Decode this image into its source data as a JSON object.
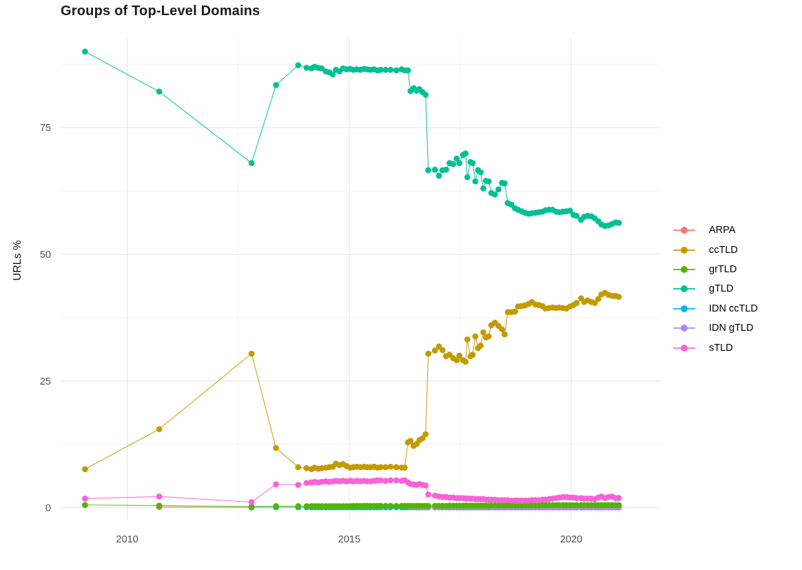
{
  "chart_data": {
    "type": "line",
    "marker": "circle",
    "title": "Groups of Top-Level Domains",
    "xlabel": "",
    "ylabel": "URLs %",
    "grid": "on",
    "legend_position": "right",
    "x_range": [
      2008.5,
      2022.0
    ],
    "y_range": [
      -2.5,
      92.7
    ],
    "x_ticks": {
      "values": [
        2010,
        2015,
        2020
      ],
      "labels": [
        "2010",
        "2015",
        "2020"
      ]
    },
    "y_ticks": {
      "values": [
        0,
        25,
        50,
        75
      ],
      "labels": [
        "0",
        "25",
        "50",
        "75"
      ]
    },
    "x_minor": [
      2012.5,
      2017.5
    ],
    "y_minor": [
      12.5,
      37.5,
      62.5,
      87.5
    ],
    "series": [
      {
        "name": "ARPA",
        "color": "#F8766D",
        "x": [
          2010.72,
          2012.8
        ],
        "y": [
          0.12,
          0.05
        ]
      },
      {
        "name": "ccTLD",
        "color": "#C49A00",
        "x": [
          2009.05,
          2010.72,
          2012.8,
          2013.35,
          2013.85,
          2014.04,
          2014.15,
          2014.22,
          2014.3,
          2014.38,
          2014.47,
          2014.55,
          2014.63,
          2014.7,
          2014.78,
          2014.86,
          2014.94,
          2015.02,
          2015.09,
          2015.17,
          2015.25,
          2015.33,
          2015.4,
          2015.48,
          2015.56,
          2015.64,
          2015.71,
          2015.82,
          2015.93,
          2016.06,
          2016.18,
          2016.25,
          2016.32,
          2016.38,
          2016.45,
          2016.52,
          2016.58,
          2016.65,
          2016.72,
          2016.78,
          2016.93,
          2017.02,
          2017.1,
          2017.18,
          2017.26,
          2017.34,
          2017.42,
          2017.48,
          2017.56,
          2017.62,
          2017.66,
          2017.73,
          2017.78,
          2017.84,
          2017.9,
          2017.96,
          2018.02,
          2018.08,
          2018.14,
          2018.2,
          2018.28,
          2018.36,
          2018.44,
          2018.5,
          2018.57,
          2018.65,
          2018.73,
          2018.8,
          2018.88,
          2018.96,
          2019.04,
          2019.11,
          2019.19,
          2019.27,
          2019.35,
          2019.42,
          2019.5,
          2019.58,
          2019.66,
          2019.73,
          2019.81,
          2019.89,
          2019.97,
          2020.05,
          2020.12,
          2020.22,
          2020.29,
          2020.37,
          2020.45,
          2020.53,
          2020.61,
          2020.68,
          2020.76,
          2020.84,
          2020.92,
          2021.0,
          2021.07
        ],
        "y": [
          7.6,
          15.5,
          30.4,
          11.8,
          8.0,
          7.8,
          7.6,
          7.9,
          7.7,
          7.8,
          7.9,
          8.0,
          8.1,
          8.7,
          8.4,
          8.6,
          8.2,
          7.9,
          8.0,
          8.1,
          8.0,
          8.1,
          8.0,
          8.0,
          8.1,
          7.9,
          8.0,
          8.0,
          8.1,
          8.0,
          7.9,
          7.9,
          12.9,
          13.2,
          12.2,
          12.6,
          13.3,
          13.7,
          14.5,
          30.4,
          31.0,
          31.8,
          31.1,
          29.9,
          30.2,
          29.5,
          29.1,
          30.0,
          29.1,
          28.8,
          33.2,
          29.9,
          30.2,
          33.8,
          31.5,
          32.0,
          34.6,
          33.6,
          33.8,
          36.0,
          36.5,
          35.9,
          35.2,
          34.2,
          38.6,
          38.6,
          38.7,
          39.7,
          39.8,
          39.9,
          40.2,
          40.6,
          40.1,
          40.0,
          39.8,
          39.3,
          39.4,
          39.5,
          39.4,
          39.5,
          39.4,
          39.3,
          39.7,
          40.0,
          40.4,
          41.3,
          40.6,
          40.9,
          40.6,
          40.4,
          41.2,
          42.1,
          42.4,
          42.0,
          41.8,
          41.8,
          41.6
        ]
      },
      {
        "name": "grTLD",
        "color": "#53B400",
        "x": [
          2009.05,
          2010.72,
          2012.8,
          2013.35,
          2013.85,
          2014.04,
          2014.15,
          2014.22,
          2014.3,
          2014.38,
          2014.47,
          2014.55,
          2014.63,
          2014.7,
          2014.78,
          2014.86,
          2014.94,
          2015.02,
          2015.09,
          2015.17,
          2015.25,
          2015.33,
          2015.4,
          2015.48,
          2015.56,
          2015.64,
          2015.71,
          2015.82,
          2015.93,
          2016.06,
          2016.18,
          2016.25,
          2016.32,
          2016.38,
          2016.45,
          2016.52,
          2016.58,
          2016.65,
          2016.72,
          2016.78,
          2016.93,
          2017.02,
          2017.1,
          2017.18,
          2017.26,
          2017.34,
          2017.42,
          2017.48,
          2017.56,
          2017.62,
          2017.66,
          2017.73,
          2017.78,
          2017.84,
          2017.9,
          2017.96,
          2018.02,
          2018.08,
          2018.14,
          2018.2,
          2018.28,
          2018.36,
          2018.44,
          2018.5,
          2018.57,
          2018.65,
          2018.73,
          2018.8,
          2018.88,
          2018.96,
          2019.04,
          2019.11,
          2019.19,
          2019.27,
          2019.35,
          2019.42,
          2019.5,
          2019.58,
          2019.66,
          2019.73,
          2019.81,
          2019.89,
          2019.97,
          2020.05,
          2020.12,
          2020.22,
          2020.29,
          2020.37,
          2020.45,
          2020.53,
          2020.61,
          2020.68,
          2020.76,
          2020.84,
          2020.92,
          2021.0,
          2021.07
        ],
        "y": [
          0.55,
          0.4,
          0.25,
          0.3,
          0.3,
          0.3,
          0.3,
          0.3,
          0.3,
          0.3,
          0.3,
          0.3,
          0.3,
          0.3,
          0.3,
          0.3,
          0.3,
          0.3,
          0.35,
          0.35,
          0.35,
          0.35,
          0.35,
          0.35,
          0.35,
          0.35,
          0.35,
          0.35,
          0.35,
          0.35,
          0.35,
          0.35,
          0.35,
          0.35,
          0.35,
          0.35,
          0.35,
          0.35,
          0.35,
          0.35,
          0.35,
          0.35,
          0.35,
          0.35,
          0.4,
          0.4,
          0.4,
          0.4,
          0.4,
          0.4,
          0.4,
          0.4,
          0.4,
          0.4,
          0.4,
          0.4,
          0.4,
          0.4,
          0.4,
          0.45,
          0.45,
          0.45,
          0.45,
          0.45,
          0.45,
          0.45,
          0.45,
          0.45,
          0.45,
          0.45,
          0.45,
          0.45,
          0.45,
          0.45,
          0.5,
          0.5,
          0.5,
          0.5,
          0.5,
          0.5,
          0.5,
          0.5,
          0.5,
          0.5,
          0.5,
          0.5,
          0.5,
          0.5,
          0.5,
          0.5,
          0.5,
          0.5,
          0.5,
          0.5,
          0.5,
          0.5,
          0.5
        ]
      },
      {
        "name": "gTLD",
        "color": "#00C094",
        "x": [
          2009.05,
          2010.72,
          2012.8,
          2013.35,
          2013.85,
          2014.04,
          2014.15,
          2014.22,
          2014.3,
          2014.38,
          2014.47,
          2014.55,
          2014.63,
          2014.7,
          2014.78,
          2014.86,
          2014.94,
          2015.02,
          2015.09,
          2015.17,
          2015.25,
          2015.33,
          2015.4,
          2015.48,
          2015.56,
          2015.64,
          2015.71,
          2015.82,
          2015.93,
          2016.06,
          2016.18,
          2016.25,
          2016.32,
          2016.38,
          2016.45,
          2016.52,
          2016.58,
          2016.65,
          2016.72,
          2016.78,
          2016.93,
          2017.02,
          2017.1,
          2017.18,
          2017.26,
          2017.34,
          2017.42,
          2017.48,
          2017.56,
          2017.62,
          2017.66,
          2017.73,
          2017.78,
          2017.84,
          2017.9,
          2017.96,
          2018.02,
          2018.08,
          2018.14,
          2018.2,
          2018.28,
          2018.36,
          2018.44,
          2018.5,
          2018.57,
          2018.65,
          2018.73,
          2018.8,
          2018.88,
          2018.96,
          2019.04,
          2019.11,
          2019.19,
          2019.27,
          2019.35,
          2019.42,
          2019.5,
          2019.58,
          2019.66,
          2019.73,
          2019.81,
          2019.89,
          2019.97,
          2020.05,
          2020.12,
          2020.22,
          2020.29,
          2020.37,
          2020.45,
          2020.53,
          2020.61,
          2020.68,
          2020.76,
          2020.84,
          2020.92,
          2021.0,
          2021.07
        ],
        "y": [
          90.0,
          82.1,
          68.0,
          83.4,
          87.3,
          86.8,
          86.7,
          87.0,
          86.8,
          86.7,
          86.1,
          85.9,
          85.5,
          86.4,
          86.1,
          86.7,
          86.5,
          86.6,
          86.4,
          86.5,
          86.4,
          86.6,
          86.5,
          86.4,
          86.5,
          86.3,
          86.4,
          86.4,
          86.4,
          86.3,
          86.5,
          86.3,
          86.3,
          82.2,
          82.8,
          82.3,
          82.6,
          82.0,
          81.5,
          66.6,
          66.7,
          65.5,
          66.6,
          66.7,
          68.0,
          67.8,
          68.9,
          68.0,
          69.6,
          69.9,
          65.2,
          68.2,
          68.0,
          64.4,
          66.6,
          66.2,
          63.0,
          64.5,
          64.4,
          62.1,
          61.8,
          62.8,
          64.1,
          64.0,
          60.1,
          59.8,
          59.1,
          58.8,
          58.5,
          58.2,
          58.0,
          58.1,
          58.2,
          58.3,
          58.4,
          58.7,
          58.8,
          58.8,
          58.4,
          58.3,
          58.4,
          58.5,
          58.6,
          57.8,
          57.6,
          56.8,
          57.4,
          57.6,
          57.5,
          57.1,
          56.5,
          55.9,
          55.6,
          55.7,
          56.0,
          56.3,
          56.2
        ]
      },
      {
        "name": "IDN ccTLD",
        "color": "#00B6EB",
        "x": [
          2012.8,
          2013.35,
          2013.85,
          2014.04,
          2014.15,
          2014.22,
          2014.3,
          2014.38,
          2014.47,
          2014.55,
          2014.63,
          2014.7,
          2014.78,
          2014.86,
          2014.94,
          2015.02,
          2015.09,
          2015.17,
          2015.25,
          2015.33,
          2015.4,
          2015.48,
          2015.56,
          2015.64,
          2015.71,
          2015.82,
          2015.93,
          2016.06,
          2016.18,
          2016.25,
          2016.32,
          2016.38,
          2016.45,
          2016.52,
          2016.58,
          2016.65,
          2016.72,
          2016.78,
          2016.93,
          2017.02,
          2017.1,
          2017.18,
          2017.26,
          2017.34,
          2017.42,
          2017.48,
          2017.56,
          2017.62,
          2017.66,
          2017.73,
          2017.78,
          2017.84,
          2017.9,
          2017.96,
          2018.02,
          2018.08,
          2018.14,
          2018.2,
          2018.28,
          2018.36,
          2018.44,
          2018.5,
          2018.57,
          2018.65,
          2018.73,
          2018.8,
          2018.88,
          2018.96,
          2019.04,
          2019.11,
          2019.19,
          2019.27,
          2019.35,
          2019.42,
          2019.5,
          2019.58,
          2019.66,
          2019.73,
          2019.81,
          2019.89,
          2019.97,
          2020.05,
          2020.12,
          2020.22,
          2020.29,
          2020.37,
          2020.45,
          2020.53,
          2020.61,
          2020.68,
          2020.76,
          2020.84,
          2020.92,
          2021.0,
          2021.07
        ],
        "y_fill": 0.08
      },
      {
        "name": "IDN gTLD",
        "color": "#A58AFF",
        "x": [
          2016.38,
          2016.45,
          2016.52,
          2016.58,
          2016.65,
          2016.72,
          2016.78,
          2016.93,
          2017.02,
          2017.1,
          2017.18,
          2017.26,
          2017.34,
          2017.42,
          2017.48,
          2017.56,
          2017.62,
          2017.66,
          2017.73,
          2017.78,
          2017.84,
          2017.9,
          2017.96,
          2018.02,
          2018.08,
          2018.14,
          2018.2,
          2018.28,
          2018.36,
          2018.44,
          2018.5,
          2018.57,
          2018.65,
          2018.73,
          2018.8,
          2018.88,
          2018.96,
          2019.04,
          2019.11,
          2019.19,
          2019.27,
          2019.35,
          2019.42,
          2019.5,
          2019.58,
          2019.66,
          2019.73,
          2019.81,
          2019.89,
          2019.97,
          2020.05,
          2020.12,
          2020.22,
          2020.29,
          2020.37,
          2020.45,
          2020.53,
          2020.61,
          2020.68,
          2020.76,
          2020.84,
          2020.92,
          2021.0,
          2021.07
        ],
        "y_fill": 0.04
      },
      {
        "name": "sTLD",
        "color": "#FB61D7",
        "x": [
          2009.05,
          2010.72,
          2012.8,
          2013.35,
          2013.85,
          2014.04,
          2014.15,
          2014.22,
          2014.3,
          2014.38,
          2014.47,
          2014.55,
          2014.63,
          2014.7,
          2014.78,
          2014.86,
          2014.94,
          2015.02,
          2015.09,
          2015.17,
          2015.25,
          2015.33,
          2015.4,
          2015.48,
          2015.56,
          2015.64,
          2015.71,
          2015.82,
          2015.93,
          2016.06,
          2016.18,
          2016.25,
          2016.32,
          2016.38,
          2016.45,
          2016.52,
          2016.58,
          2016.65,
          2016.72,
          2016.78,
          2016.93,
          2017.02,
          2017.1,
          2017.18,
          2017.26,
          2017.34,
          2017.42,
          2017.48,
          2017.56,
          2017.62,
          2017.66,
          2017.73,
          2017.78,
          2017.84,
          2017.9,
          2017.96,
          2018.02,
          2018.08,
          2018.14,
          2018.2,
          2018.28,
          2018.36,
          2018.44,
          2018.5,
          2018.57,
          2018.65,
          2018.73,
          2018.8,
          2018.88,
          2018.96,
          2019.04,
          2019.11,
          2019.19,
          2019.27,
          2019.35,
          2019.42,
          2019.5,
          2019.58,
          2019.66,
          2019.73,
          2019.81,
          2019.89,
          2019.97,
          2020.05,
          2020.12,
          2020.22,
          2020.29,
          2020.37,
          2020.45,
          2020.53,
          2020.61,
          2020.68,
          2020.76,
          2020.84,
          2020.92,
          2021.0,
          2021.07
        ],
        "y": [
          1.8,
          2.2,
          1.1,
          4.6,
          4.5,
          4.9,
          5.0,
          5.1,
          5.0,
          5.1,
          5.2,
          5.1,
          5.2,
          5.3,
          5.2,
          5.3,
          5.2,
          5.3,
          5.2,
          5.3,
          5.2,
          5.3,
          5.2,
          5.2,
          5.3,
          5.4,
          5.4,
          5.3,
          5.4,
          5.4,
          5.3,
          5.4,
          5.0,
          4.7,
          4.6,
          4.5,
          4.7,
          4.5,
          4.4,
          2.6,
          2.4,
          2.2,
          2.1,
          2.1,
          2.0,
          2.0,
          1.9,
          1.9,
          1.9,
          1.8,
          1.8,
          1.8,
          1.8,
          1.7,
          1.7,
          1.7,
          1.7,
          1.6,
          1.6,
          1.6,
          1.6,
          1.5,
          1.5,
          1.5,
          1.5,
          1.4,
          1.4,
          1.4,
          1.4,
          1.4,
          1.4,
          1.5,
          1.5,
          1.5,
          1.6,
          1.6,
          1.7,
          1.8,
          1.9,
          2.0,
          2.1,
          2.1,
          2.0,
          2.0,
          1.9,
          1.9,
          1.8,
          1.8,
          1.8,
          1.7,
          2.0,
          2.2,
          1.9,
          2.1,
          2.2,
          1.9,
          1.9
        ]
      }
    ]
  }
}
